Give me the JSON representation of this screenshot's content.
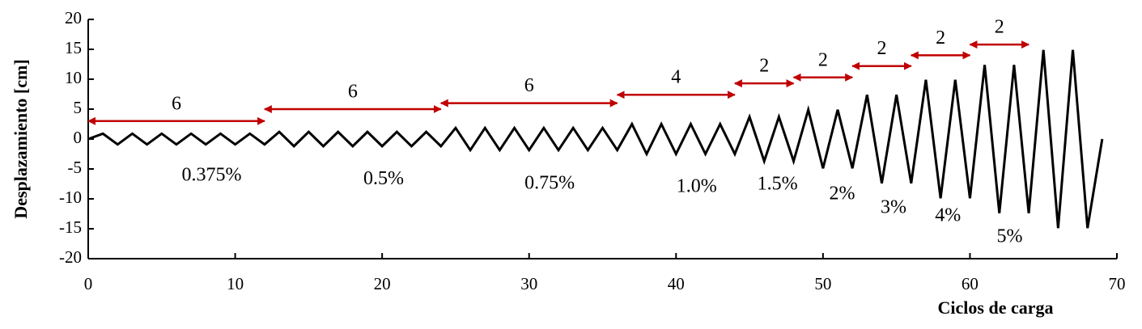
{
  "chart_data": {
    "type": "line",
    "x_label": "Ciclos de carga",
    "y_label": "Desplazamiento [cm]",
    "x": [
      0,
      1,
      2,
      3,
      4,
      5,
      6,
      7,
      8,
      9,
      10,
      11,
      12,
      13,
      14,
      15,
      16,
      17,
      18,
      19,
      20,
      21,
      22,
      23,
      24,
      25,
      26,
      27,
      28,
      29,
      30,
      31,
      32,
      33,
      34,
      35,
      36,
      37,
      38,
      39,
      40,
      41,
      42,
      43,
      44,
      45,
      46,
      47,
      48,
      49,
      50,
      51,
      52,
      53,
      54,
      55,
      56,
      57,
      58,
      59,
      60,
      61,
      62,
      63,
      64,
      65,
      66,
      67,
      68,
      69
    ],
    "series": [
      {
        "color": "#000000",
        "values": [
          0,
          0.9,
          -0.9,
          0.9,
          -0.9,
          0.9,
          -0.9,
          0.9,
          -0.9,
          0.9,
          -0.9,
          0.9,
          -0.9,
          1.2,
          -1.2,
          1.2,
          -1.2,
          1.2,
          -1.2,
          1.2,
          -1.2,
          1.2,
          -1.2,
          1.2,
          -1.2,
          1.85,
          -1.85,
          1.85,
          -1.85,
          1.85,
          -1.85,
          1.85,
          -1.85,
          1.85,
          -1.85,
          1.85,
          -1.85,
          2.5,
          -2.5,
          2.5,
          -2.5,
          2.5,
          -2.5,
          2.5,
          -2.5,
          3.7,
          -3.7,
          3.7,
          -3.7,
          4.9,
          -4.9,
          4.9,
          -4.9,
          7.4,
          -7.4,
          7.4,
          -7.4,
          9.9,
          -9.9,
          9.9,
          -9.9,
          12.4,
          -12.4,
          12.4,
          -12.4,
          14.9,
          -14.9,
          14.9,
          -14.9,
          0
        ]
      }
    ],
    "xlim": [
      0,
      70
    ],
    "xticks": [
      0,
      10,
      20,
      30,
      40,
      50,
      60,
      70
    ],
    "ylim": [
      -20,
      20
    ],
    "yticks": [
      -20,
      -15,
      -10,
      -5,
      0,
      5,
      10,
      15,
      20
    ],
    "arrow_color": "#c00000",
    "arrows": [
      {
        "text": "6",
        "x": [
          0,
          12
        ],
        "y": 3
      },
      {
        "text": "6",
        "x": [
          12,
          24
        ],
        "y": 5
      },
      {
        "text": "6",
        "x": [
          24,
          36
        ],
        "y": 6
      },
      {
        "text": "4",
        "x": [
          36,
          44
        ],
        "y": 7.4
      },
      {
        "text": "2",
        "x": [
          44,
          48
        ],
        "y": 9.3
      },
      {
        "text": "2",
        "x": [
          48,
          52
        ],
        "y": 10.3
      },
      {
        "text": "2",
        "x": [
          52,
          56
        ],
        "y": 12.2
      },
      {
        "text": "2",
        "x": [
          56,
          60
        ],
        "y": 14
      },
      {
        "text": "2",
        "x": [
          60,
          64
        ],
        "y": 15.8
      }
    ],
    "drift_labels": [
      {
        "text": "0.375%",
        "x": 8.4,
        "y": -6.2
      },
      {
        "text": "0.5%",
        "x": 20.1,
        "y": -6.8
      },
      {
        "text": "0.75%",
        "x": 31.4,
        "y": -7.6
      },
      {
        "text": "1.0%",
        "x": 41.4,
        "y": -8.1
      },
      {
        "text": "1.5%",
        "x": 46.9,
        "y": -7.7
      },
      {
        "text": "2%",
        "x": 51.3,
        "y": -9.3
      },
      {
        "text": "3%",
        "x": 54.8,
        "y": -11.6
      },
      {
        "text": "4%",
        "x": 58.5,
        "y": -13
      },
      {
        "text": "5%",
        "x": 62.7,
        "y": -16.5
      }
    ]
  }
}
